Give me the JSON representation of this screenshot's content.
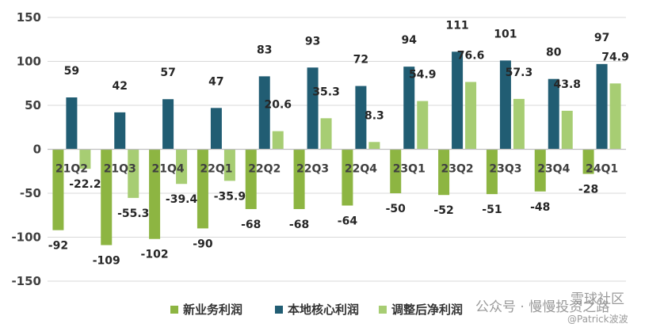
{
  "chart_data": {
    "type": "bar",
    "title": "",
    "xlabel": "",
    "ylabel": "",
    "ylim": [
      -150,
      150
    ],
    "yticks": [
      150,
      100,
      50,
      0,
      -50,
      -100,
      -150
    ],
    "gridlines": true,
    "legend_position": "bottom-center",
    "categories": [
      "21Q2",
      "21Q3",
      "21Q4",
      "22Q1",
      "22Q2",
      "22Q3",
      "22Q4",
      "23Q1",
      "23Q2",
      "23Q3",
      "23Q4",
      "24Q1"
    ],
    "series": [
      {
        "name": "新业务利润",
        "color": "#8DB542",
        "values": [
          -92,
          -109,
          -102,
          -90,
          -68,
          -68,
          -64,
          -50,
          -52,
          -51,
          -48,
          -28
        ]
      },
      {
        "name": "本地核心利润",
        "color": "#215D73",
        "values": [
          59,
          42,
          57,
          47,
          83,
          93,
          72,
          94,
          111,
          101,
          80,
          97
        ]
      },
      {
        "name": "调整后净利润",
        "color": "#A7CD73",
        "values": [
          -22.2,
          -55.3,
          -39.4,
          -35.9,
          20.6,
          35.3,
          8.3,
          54.9,
          76.6,
          57.3,
          43.8,
          74.9
        ]
      }
    ]
  },
  "watermark": {
    "text": "公众号 · 慢慢投资之路",
    "site": "雪球社区",
    "author": "@Patrick波波"
  }
}
